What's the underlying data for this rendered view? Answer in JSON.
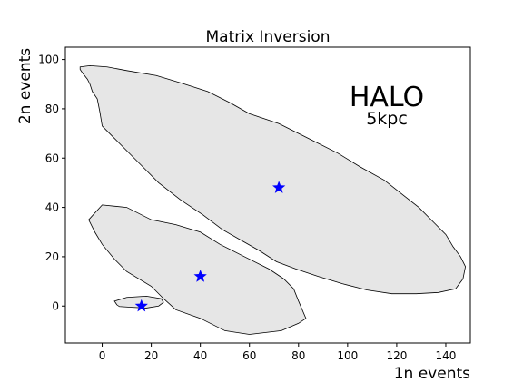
{
  "chart_data": {
    "type": "area",
    "title": "Matrix Inversion",
    "xlabel": "1n events",
    "ylabel": "2n events",
    "xlim": [
      -15,
      150
    ],
    "ylim": [
      -15,
      105
    ],
    "xticks": [
      0,
      20,
      40,
      60,
      80,
      100,
      120,
      140
    ],
    "yticks": [
      0,
      20,
      40,
      60,
      80,
      100
    ],
    "grid": false,
    "annotation": {
      "title": "HALO",
      "subtitle": "5kpc"
    },
    "colors": {
      "region_fill": "#e6e6e6",
      "region_edge": "#000000",
      "marker": "#0000ff"
    },
    "regions": [
      {
        "points": [
          [
            -9,
            97
          ],
          [
            -5,
            97.5
          ],
          [
            2,
            97
          ],
          [
            10,
            95.5
          ],
          [
            22,
            93.5
          ],
          [
            32,
            90.5
          ],
          [
            43,
            87
          ],
          [
            52,
            82.5
          ],
          [
            60,
            78
          ],
          [
            72,
            74
          ],
          [
            85,
            67.5
          ],
          [
            96,
            62
          ],
          [
            105,
            56.5
          ],
          [
            115,
            51
          ],
          [
            122,
            45.5
          ],
          [
            129,
            40
          ],
          [
            135,
            34
          ],
          [
            140,
            29
          ],
          [
            143,
            24
          ],
          [
            146,
            20
          ],
          [
            148,
            16
          ],
          [
            147,
            11
          ],
          [
            144,
            7
          ],
          [
            137,
            5.5
          ],
          [
            128,
            5
          ],
          [
            118,
            5
          ],
          [
            108,
            6.5
          ],
          [
            98,
            9
          ],
          [
            88,
            12
          ],
          [
            79,
            15
          ],
          [
            71,
            18
          ],
          [
            64,
            22.5
          ],
          [
            56,
            27
          ],
          [
            49,
            31
          ],
          [
            41,
            37
          ],
          [
            32,
            43
          ],
          [
            23,
            50
          ],
          [
            16,
            57
          ],
          [
            9,
            64
          ],
          [
            4,
            69
          ],
          [
            0,
            73
          ],
          [
            -1,
            79
          ],
          [
            -2,
            84
          ],
          [
            -4,
            87
          ],
          [
            -5,
            90
          ],
          [
            -6,
            92
          ],
          [
            -8,
            94.5
          ],
          [
            -9,
            96
          ]
        ],
        "marker": [
          72,
          48
        ]
      },
      {
        "points": [
          [
            -5.5,
            35
          ],
          [
            0,
            41
          ],
          [
            10,
            40
          ],
          [
            20,
            35
          ],
          [
            30,
            33
          ],
          [
            40,
            30
          ],
          [
            48,
            25
          ],
          [
            58,
            20
          ],
          [
            68,
            15
          ],
          [
            74,
            11
          ],
          [
            78,
            7
          ],
          [
            80,
            2
          ],
          [
            83,
            -5
          ],
          [
            80,
            -7
          ],
          [
            73,
            -10
          ],
          [
            60,
            -11.5
          ],
          [
            50,
            -10
          ],
          [
            40,
            -5
          ],
          [
            30,
            -1.5
          ],
          [
            25,
            3
          ],
          [
            20,
            8
          ],
          [
            10,
            14
          ],
          [
            5,
            19
          ],
          [
            0,
            25
          ],
          [
            -3,
            30
          ]
        ],
        "marker": [
          40,
          12
        ]
      },
      {
        "points": [
          [
            6,
            0.5
          ],
          [
            5,
            2
          ],
          [
            10,
            3.5
          ],
          [
            18,
            4
          ],
          [
            24,
            3
          ],
          [
            25,
            1.5
          ],
          [
            23,
            0
          ],
          [
            18,
            -0.8
          ],
          [
            12,
            -0.5
          ],
          [
            7,
            -0.2
          ]
        ],
        "marker": [
          16,
          0
        ]
      }
    ]
  }
}
